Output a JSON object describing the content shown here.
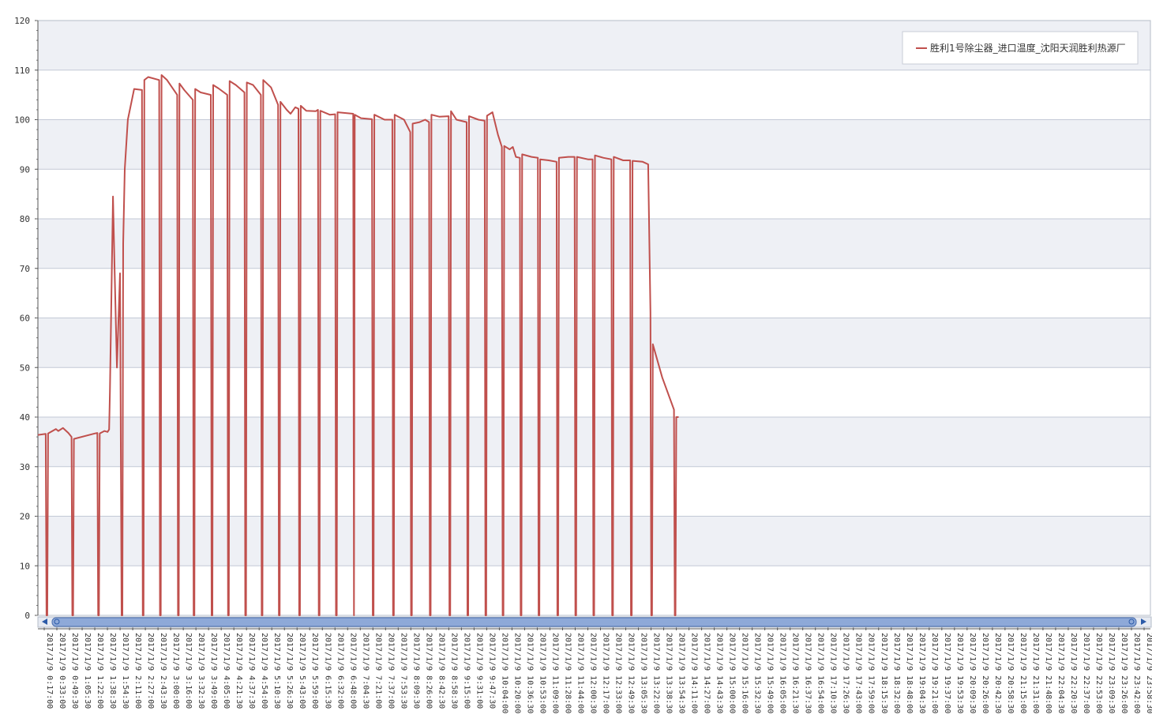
{
  "chart_data": {
    "type": "line",
    "title": "",
    "xlabel": "",
    "ylabel": "",
    "ylim": [
      0,
      120
    ],
    "yticks": [
      0,
      10,
      20,
      30,
      40,
      50,
      60,
      70,
      80,
      90,
      100,
      110,
      120
    ],
    "xlim": [
      "2017/1/9 0:17:00",
      "2017/1/9 23:59:00"
    ],
    "grid": true,
    "legend_position": "top-right",
    "x_tick_labels": [
      "2017/1/9 0:17:00",
      "2017/1/9 0:33:00",
      "2017/1/9 0:49:30",
      "2017/1/9 1:05:30",
      "2017/1/9 1:22:00",
      "2017/1/9 1:38:30",
      "2017/1/9 1:54:30",
      "2017/1/9 2:11:00",
      "2017/1/9 2:27:00",
      "2017/1/9 2:43:30",
      "2017/1/9 3:00:00",
      "2017/1/9 3:16:00",
      "2017/1/9 3:32:30",
      "2017/1/9 3:49:00",
      "2017/1/9 4:05:00",
      "2017/1/9 4:21:30",
      "2017/1/9 4:37:30",
      "2017/1/9 4:54:00",
      "2017/1/9 5:10:30",
      "2017/1/9 5:26:30",
      "2017/1/9 5:43:00",
      "2017/1/9 5:59:00",
      "2017/1/9 6:15:30",
      "2017/1/9 6:32:00",
      "2017/1/9 6:48:00",
      "2017/1/9 7:04:30",
      "2017/1/9 7:21:00",
      "2017/1/9 7:37:00",
      "2017/1/9 7:53:30",
      "2017/1/9 8:09:30",
      "2017/1/9 8:26:00",
      "2017/1/9 8:42:30",
      "2017/1/9 8:58:30",
      "2017/1/9 9:15:00",
      "2017/1/9 9:31:00",
      "2017/1/9 9:47:30",
      "2017/1/9 10:04:00",
      "2017/1/9 10:20:00",
      "2017/1/9 10:36:30",
      "2017/1/9 10:53:00",
      "2017/1/9 11:09:00",
      "2017/1/9 11:28:00",
      "2017/1/9 11:44:00",
      "2017/1/9 12:00:30",
      "2017/1/9 12:17:00",
      "2017/1/9 12:33:00",
      "2017/1/9 12:49:30",
      "2017/1/9 13:05:30",
      "2017/1/9 13:22:00",
      "2017/1/9 13:38:30",
      "2017/1/9 13:54:30",
      "2017/1/9 14:11:00",
      "2017/1/9 14:27:00",
      "2017/1/9 14:43:30",
      "2017/1/9 15:00:00",
      "2017/1/9 15:16:00",
      "2017/1/9 15:32:30",
      "2017/1/9 15:49:00",
      "2017/1/9 16:05:00",
      "2017/1/9 16:21:30",
      "2017/1/9 16:37:30",
      "2017/1/9 16:54:00",
      "2017/1/9 17:10:30",
      "2017/1/9 17:26:30",
      "2017/1/9 17:43:00",
      "2017/1/9 17:59:00",
      "2017/1/9 18:15:30",
      "2017/1/9 18:32:00",
      "2017/1/9 18:48:00",
      "2017/1/9 19:04:30",
      "2017/1/9 19:21:00",
      "2017/1/9 19:37:00",
      "2017/1/9 19:53:30",
      "2017/1/9 20:09:30",
      "2017/1/9 20:26:00",
      "2017/1/9 20:42:30",
      "2017/1/9 20:58:30",
      "2017/1/9 21:15:00",
      "2017/1/9 21:31:00",
      "2017/1/9 21:48:00",
      "2017/1/9 22:04:30",
      "2017/1/9 22:20:30",
      "2017/1/9 22:37:00",
      "2017/1/9 22:53:00",
      "2017/1/9 23:09:30",
      "2017/1/9 23:26:00",
      "2017/1/9 23:42:00",
      "2017/1/9 23:58:30"
    ],
    "series": [
      {
        "name": "胜利1号除尘器_进口温度_沈阳天润胜利热源厂",
        "color": "#c0504d",
        "points": [
          [
            "2017/1/9 0:17:00",
            36.4
          ],
          [
            "2017/1/9 0:27:00",
            36.6
          ],
          [
            "2017/1/9 0:28:00",
            0
          ],
          [
            "2017/1/9 0:29:00",
            0
          ],
          [
            "2017/1/9 0:30:00",
            36.7
          ],
          [
            "2017/1/9 0:40:00",
            37.6
          ],
          [
            "2017/1/9 0:43:00",
            37.2
          ],
          [
            "2017/1/9 0:49:00",
            37.8
          ],
          [
            "2017/1/9 0:56:00",
            36.8
          ],
          [
            "2017/1/9 1:00:00",
            36.0
          ],
          [
            "2017/1/9 1:01:00",
            0
          ],
          [
            "2017/1/9 1:02:00",
            0
          ],
          [
            "2017/1/9 1:03:00",
            35.6
          ],
          [
            "2017/1/9 1:30:00",
            36.7
          ],
          [
            "2017/1/9 1:33:00",
            36.8
          ],
          [
            "2017/1/9 1:34:00",
            0
          ],
          [
            "2017/1/9 1:35:00",
            0
          ],
          [
            "2017/1/9 1:36:00",
            36.7
          ],
          [
            "2017/1/9 1:42:00",
            37.2
          ],
          [
            "2017/1/9 1:46:00",
            37.0
          ],
          [
            "2017/1/9 1:48:00",
            37.5
          ],
          [
            "2017/1/9 1:49:00",
            45.0
          ],
          [
            "2017/1/9 1:53:00",
            84.5
          ],
          [
            "2017/1/9 1:55:00",
            70.0
          ],
          [
            "2017/1/9 1:58:00",
            50.0
          ],
          [
            "2017/1/9 2:02:00",
            69.0
          ],
          [
            "2017/1/9 2:04:00",
            0
          ],
          [
            "2017/1/9 2:05:00",
            0
          ],
          [
            "2017/1/9 2:06:00",
            75.0
          ],
          [
            "2017/1/9 2:08:00",
            90.0
          ],
          [
            "2017/1/9 2:12:00",
            100.0
          ],
          [
            "2017/1/9 2:20:00",
            106.2
          ],
          [
            "2017/1/9 2:30:00",
            106.0
          ],
          [
            "2017/1/9 2:31:00",
            0
          ],
          [
            "2017/1/9 2:32:00",
            0
          ],
          [
            "2017/1/9 2:33:00",
            108.0
          ],
          [
            "2017/1/9 2:38:00",
            108.6
          ],
          [
            "2017/1/9 2:52:00",
            108.0
          ],
          [
            "2017/1/9 2:53:00",
            0
          ],
          [
            "2017/1/9 2:54:00",
            0
          ],
          [
            "2017/1/9 2:55:00",
            109.0
          ],
          [
            "2017/1/9 3:02:00",
            108.0
          ],
          [
            "2017/1/9 3:15:00",
            105.0
          ],
          [
            "2017/1/9 3:16:00",
            0
          ],
          [
            "2017/1/9 3:17:00",
            0
          ],
          [
            "2017/1/9 3:18:00",
            107.3
          ],
          [
            "2017/1/9 3:24:00",
            106.0
          ],
          [
            "2017/1/9 3:35:00",
            104.0
          ],
          [
            "2017/1/9 3:36:00",
            0
          ],
          [
            "2017/1/9 3:37:00",
            0
          ],
          [
            "2017/1/9 3:38:00",
            106.2
          ],
          [
            "2017/1/9 3:45:00",
            105.5
          ],
          [
            "2017/1/9 3:58:00",
            105.0
          ],
          [
            "2017/1/9 3:59:00",
            0
          ],
          [
            "2017/1/9 4:00:00",
            0
          ],
          [
            "2017/1/9 4:01:00",
            107.0
          ],
          [
            "2017/1/9 4:08:00",
            106.3
          ],
          [
            "2017/1/9 4:19:00",
            105.0
          ],
          [
            "2017/1/9 4:20:00",
            0
          ],
          [
            "2017/1/9 4:21:00",
            0
          ],
          [
            "2017/1/9 4:22:00",
            107.8
          ],
          [
            "2017/1/9 4:30:00",
            107.0
          ],
          [
            "2017/1/9 4:41:00",
            105.5
          ],
          [
            "2017/1/9 4:42:00",
            0
          ],
          [
            "2017/1/9 4:43:00",
            0
          ],
          [
            "2017/1/9 4:44:00",
            107.5
          ],
          [
            "2017/1/9 4:52:00",
            107.0
          ],
          [
            "2017/1/9 5:02:00",
            105.0
          ],
          [
            "2017/1/9 5:03:00",
            0
          ],
          [
            "2017/1/9 5:04:00",
            0
          ],
          [
            "2017/1/9 5:05:00",
            108.0
          ],
          [
            "2017/1/9 5:15:00",
            106.5
          ],
          [
            "2017/1/9 5:24:00",
            103.0
          ],
          [
            "2017/1/9 5:25:00",
            0
          ],
          [
            "2017/1/9 5:26:00",
            0
          ],
          [
            "2017/1/9 5:27:00",
            103.6
          ],
          [
            "2017/1/9 5:35:00",
            102.0
          ],
          [
            "2017/1/9 5:40:00",
            101.2
          ],
          [
            "2017/1/9 5:46:00",
            102.5
          ],
          [
            "2017/1/9 5:50:00",
            102.2
          ],
          [
            "2017/1/9 5:51:00",
            0
          ],
          [
            "2017/1/9 5:52:00",
            0
          ],
          [
            "2017/1/9 5:53:00",
            102.8
          ],
          [
            "2017/1/9 6:00:00",
            101.8
          ],
          [
            "2017/1/9 6:12:00",
            101.7
          ],
          [
            "2017/1/9 6:15:00",
            102.0
          ],
          [
            "2017/1/9 6:16:00",
            0
          ],
          [
            "2017/1/9 6:17:00",
            0
          ],
          [
            "2017/1/9 6:18:00",
            101.8
          ],
          [
            "2017/1/9 6:30:00",
            101.0
          ],
          [
            "2017/1/9 6:37:00",
            101.1
          ],
          [
            "2017/1/9 6:38:00",
            0
          ],
          [
            "2017/1/9 6:39:00",
            0
          ],
          [
            "2017/1/9 6:40:00",
            101.5
          ],
          [
            "2017/1/9 7:00:00",
            101.2
          ],
          [
            "2017/1/9 7:01:00",
            0
          ],
          [
            "2017/1/9 7:02:00",
            101.0
          ],
          [
            "2017/1/9 7:10:00",
            100.3
          ],
          [
            "2017/1/9 7:24:00",
            100.1
          ],
          [
            "2017/1/9 7:25:00",
            0
          ],
          [
            "2017/1/9 7:26:00",
            0
          ],
          [
            "2017/1/9 7:27:00",
            101.0
          ],
          [
            "2017/1/9 7:40:00",
            100.0
          ],
          [
            "2017/1/9 7:50:00",
            100.0
          ],
          [
            "2017/1/9 7:51:00",
            0
          ],
          [
            "2017/1/9 7:52:00",
            0
          ],
          [
            "2017/1/9 7:53:00",
            101.0
          ],
          [
            "2017/1/9 8:05:00",
            100.0
          ],
          [
            "2017/1/9 8:13:00",
            97.5
          ],
          [
            "2017/1/9 8:14:00",
            0
          ],
          [
            "2017/1/9 8:15:00",
            0
          ],
          [
            "2017/1/9 8:16:00",
            99.2
          ],
          [
            "2017/1/9 8:25:00",
            99.5
          ],
          [
            "2017/1/9 8:32:00",
            100.0
          ],
          [
            "2017/1/9 8:37:00",
            99.5
          ],
          [
            "2017/1/9 8:38:00",
            0
          ],
          [
            "2017/1/9 8:39:00",
            0
          ],
          [
            "2017/1/9 8:40:00",
            101.0
          ],
          [
            "2017/1/9 8:50:00",
            100.6
          ],
          [
            "2017/1/9 9:02:00",
            100.7
          ],
          [
            "2017/1/9 9:03:00",
            0
          ],
          [
            "2017/1/9 9:04:00",
            0
          ],
          [
            "2017/1/9 9:05:00",
            101.7
          ],
          [
            "2017/1/9 9:12:00",
            100.0
          ],
          [
            "2017/1/9 9:25:00",
            99.5
          ],
          [
            "2017/1/9 9:26:00",
            0
          ],
          [
            "2017/1/9 9:27:00",
            0
          ],
          [
            "2017/1/9 9:28:00",
            100.7
          ],
          [
            "2017/1/9 9:40:00",
            100.0
          ],
          [
            "2017/1/9 9:48:00",
            99.8
          ],
          [
            "2017/1/9 9:49:00",
            0
          ],
          [
            "2017/1/9 9:50:00",
            0
          ],
          [
            "2017/1/9 9:51:00",
            100.8
          ],
          [
            "2017/1/9 9:58:00",
            101.5
          ],
          [
            "2017/1/9 10:05:00",
            97.0
          ],
          [
            "2017/1/9 10:10:00",
            94.5
          ],
          [
            "2017/1/9 10:11:00",
            0
          ],
          [
            "2017/1/9 10:12:00",
            0
          ],
          [
            "2017/1/9 10:13:00",
            94.7
          ],
          [
            "2017/1/9 10:20:00",
            94.0
          ],
          [
            "2017/1/9 10:24:00",
            94.5
          ],
          [
            "2017/1/9 10:28:00",
            92.5
          ],
          [
            "2017/1/9 10:33:00",
            92.3
          ],
          [
            "2017/1/9 10:34:00",
            0
          ],
          [
            "2017/1/9 10:35:00",
            0
          ],
          [
            "2017/1/9 10:36:00",
            93.0
          ],
          [
            "2017/1/9 10:48:00",
            92.5
          ],
          [
            "2017/1/9 10:56:00",
            92.3
          ],
          [
            "2017/1/9 10:57:00",
            0
          ],
          [
            "2017/1/9 10:58:00",
            0
          ],
          [
            "2017/1/9 10:59:00",
            92.0
          ],
          [
            "2017/1/9 11:10:00",
            91.8
          ],
          [
            "2017/1/9 11:20:00",
            91.5
          ],
          [
            "2017/1/9 11:21:00",
            0
          ],
          [
            "2017/1/9 11:22:00",
            0
          ],
          [
            "2017/1/9 11:23:00",
            92.3
          ],
          [
            "2017/1/9 11:35:00",
            92.5
          ],
          [
            "2017/1/9 11:43:00",
            92.5
          ],
          [
            "2017/1/9 11:44:00",
            0
          ],
          [
            "2017/1/9 11:45:00",
            0
          ],
          [
            "2017/1/9 11:46:00",
            92.5
          ],
          [
            "2017/1/9 12:00:00",
            92.0
          ],
          [
            "2017/1/9 12:06:00",
            92.0
          ],
          [
            "2017/1/9 12:07:00",
            0
          ],
          [
            "2017/1/9 12:08:00",
            0
          ],
          [
            "2017/1/9 12:09:00",
            92.8
          ],
          [
            "2017/1/9 12:20:00",
            92.3
          ],
          [
            "2017/1/9 12:30:00",
            92.0
          ],
          [
            "2017/1/9 12:31:00",
            0
          ],
          [
            "2017/1/9 12:32:00",
            0
          ],
          [
            "2017/1/9 12:33:00",
            92.5
          ],
          [
            "2017/1/9 12:45:00",
            91.8
          ],
          [
            "2017/1/9 12:54:00",
            91.8
          ],
          [
            "2017/1/9 12:55:00",
            0
          ],
          [
            "2017/1/9 12:56:00",
            0
          ],
          [
            "2017/1/9 12:57:00",
            91.7
          ],
          [
            "2017/1/9 13:10:00",
            91.5
          ],
          [
            "2017/1/9 13:17:00",
            91.0
          ],
          [
            "2017/1/9 13:20:00",
            61.0
          ],
          [
            "2017/1/9 13:21:00",
            0
          ],
          [
            "2017/1/9 13:22:00",
            0
          ],
          [
            "2017/1/9 13:23:00",
            54.7
          ],
          [
            "2017/1/9 13:35:00",
            48.0
          ],
          [
            "2017/1/9 13:50:00",
            41.5
          ],
          [
            "2017/1/9 13:51:00",
            0
          ],
          [
            "2017/1/9 13:52:00",
            0
          ],
          [
            "2017/1/9 13:53:00",
            40.0
          ],
          [
            "2017/1/9 13:56:00",
            40.0
          ]
        ]
      }
    ]
  }
}
